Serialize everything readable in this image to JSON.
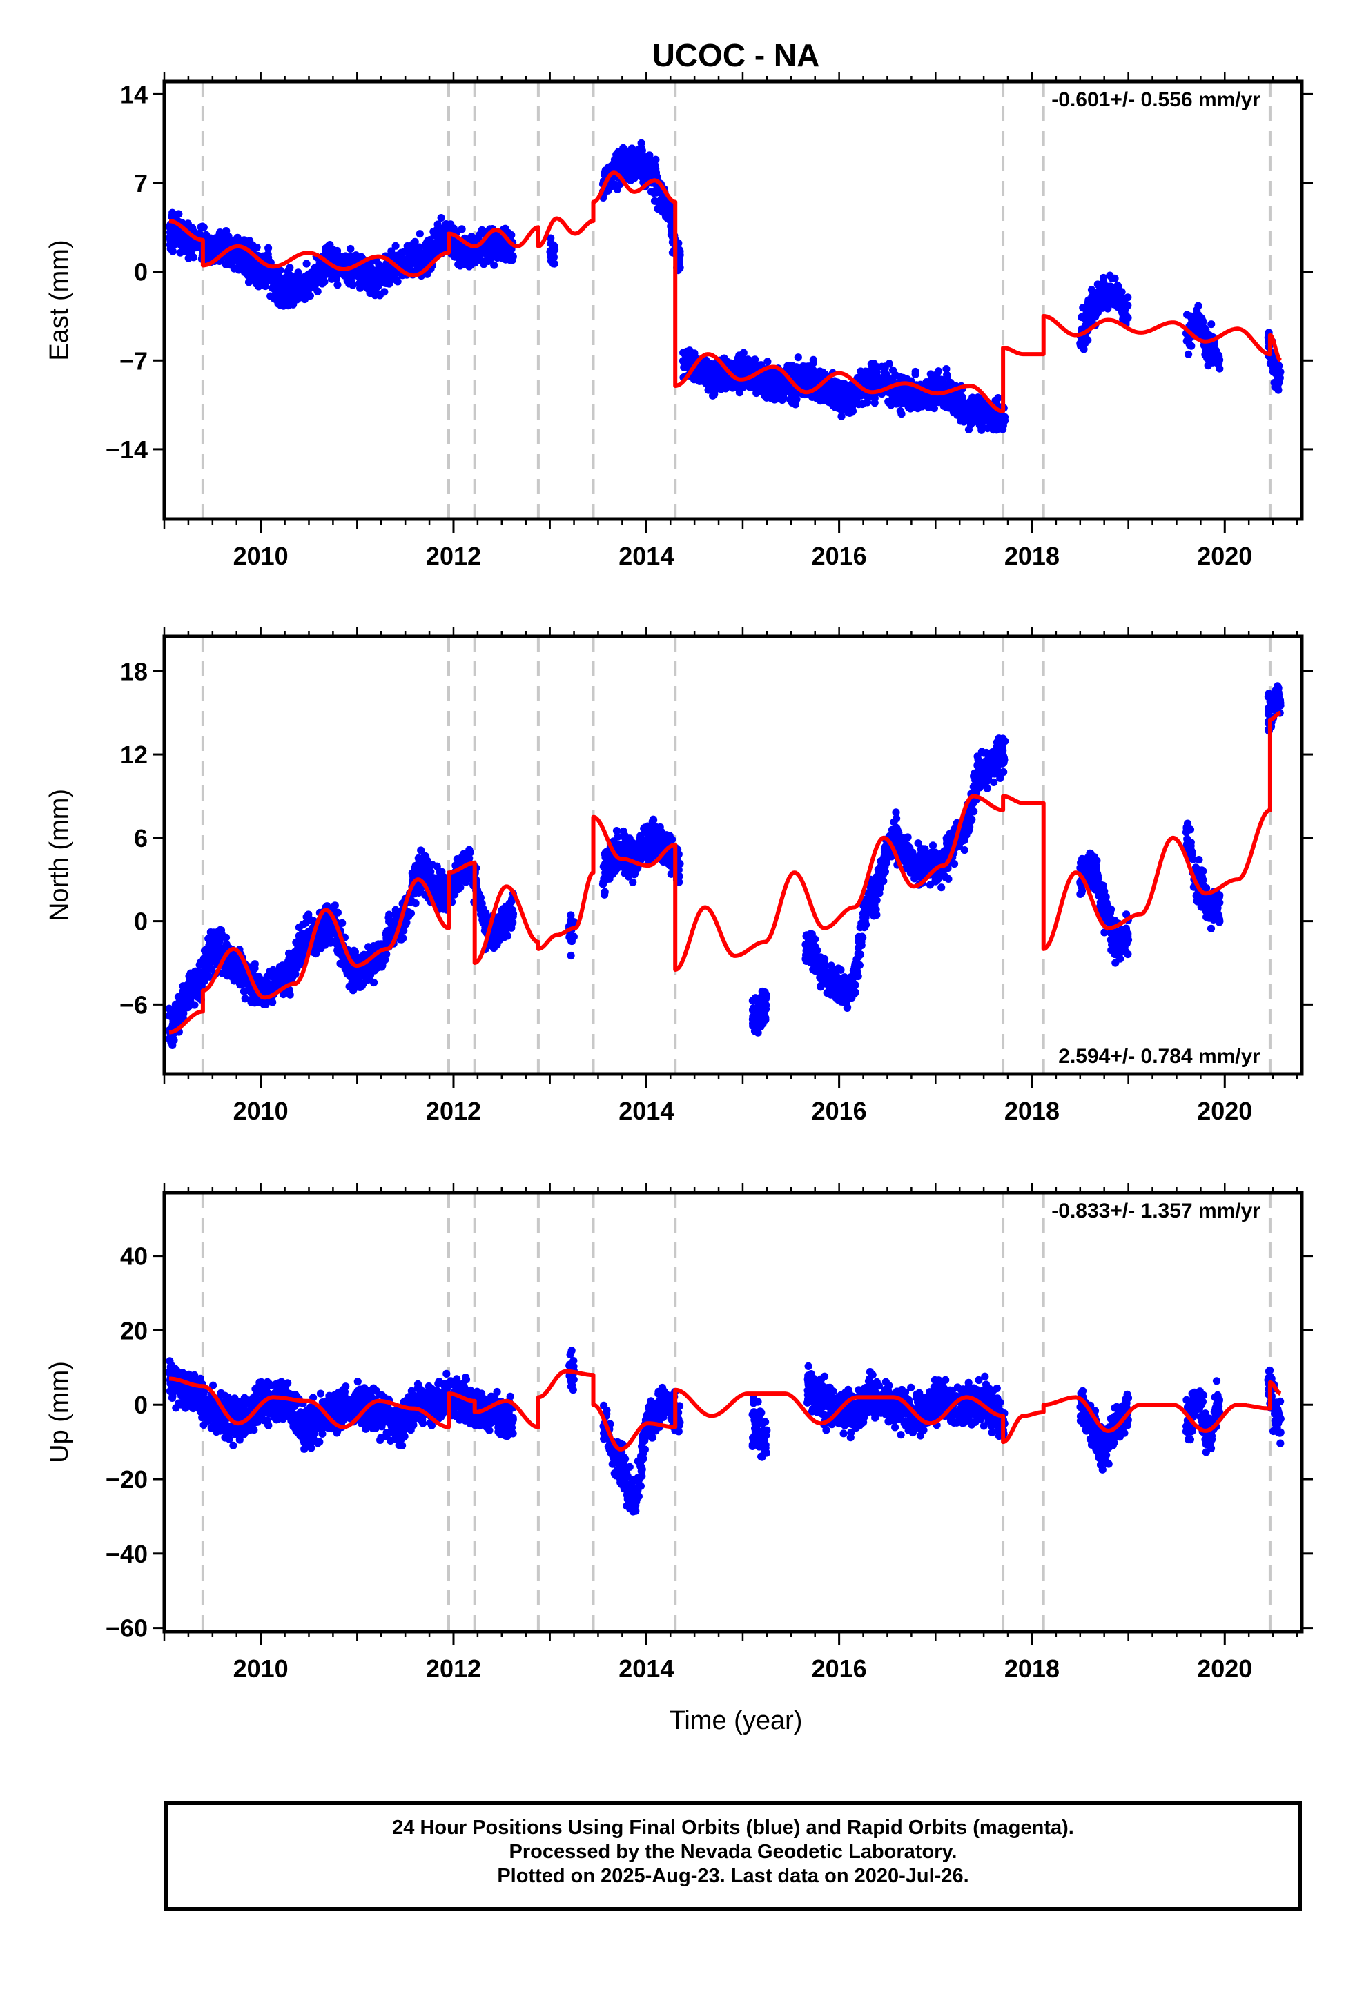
{
  "title": "UCOC - NA",
  "x_axis_label": "Time (year)",
  "footer": {
    "line1": "24 Hour Positions Using Final Orbits (blue) and Rapid Orbits (magenta).",
    "line2": "Processed by the Nevada Geodetic Laboratory.",
    "line3": "Plotted on 2025-Aug-23. Last data on 2020-Jul-26."
  },
  "colors": {
    "data_points": "#0000ff",
    "model_fit": "#ff0000",
    "step_lines": "#c8c8c8",
    "frame": "#000000"
  },
  "chart_data": [
    {
      "type": "scatter",
      "panel": "east",
      "ylabel": "East (mm)",
      "rate_label": "-0.601+/- 0.556 mm/yr",
      "rate_position": "top-right",
      "xlim": [
        2009.0,
        2020.8
      ],
      "ylim": [
        -19.5,
        15.0
      ],
      "xticks": [
        "2010",
        "2012",
        "2014",
        "2016",
        "2018",
        "2020"
      ],
      "yticks": [
        "14",
        "7",
        "0",
        "−7",
        "−14"
      ],
      "ytick_values": [
        14,
        7,
        0,
        -7,
        -14
      ],
      "step_epochs": [
        2009.4,
        2011.95,
        2012.22,
        2012.88,
        2013.45,
        2014.3,
        2017.7,
        2018.12,
        2020.47
      ],
      "series": [
        {
          "name": "",
          "style": "points",
          "segments": [
            {
              "range": [
                2009.05,
                2012.62
              ],
              "values": [
                3.2,
                2.5,
                1.8,
                1.3,
                0.4,
                -1.5,
                -1.0,
                0.6,
                0.2,
                -0.5,
                0.5,
                1.2,
                2.8,
                1.6,
                2.2,
                1.8
              ]
            },
            {
              "range": [
                2013.0,
                2013.05
              ],
              "values": [
                1.5
              ]
            },
            {
              "range": [
                2013.55,
                2014.35
              ],
              "values": [
                7.0,
                8.2,
                8.7,
                7.9,
                5.5,
                1.0
              ]
            },
            {
              "range": [
                2014.38,
                2017.72
              ],
              "values": [
                -7.0,
                -8.3,
                -8.0,
                -9.0,
                -8.5,
                -10.0,
                -8.6,
                -9.8,
                -9.3,
                -11.0,
                -11.5
              ]
            },
            {
              "range": [
                2018.5,
                2019.0
              ],
              "values": [
                -5.0,
                -3.0,
                -1.5,
                -2.0,
                -3.5
              ]
            },
            {
              "range": [
                2019.6,
                2019.95
              ],
              "values": [
                -5.0,
                -4.0,
                -6.0,
                -7.0
              ]
            },
            {
              "range": [
                2020.45,
                2020.58
              ],
              "values": [
                -6.0,
                -8.5
              ]
            }
          ],
          "spread": 1.7
        },
        {
          "name": "",
          "style": "line",
          "segments": [
            {
              "range": [
                2009.05,
                2009.4
              ],
              "values": [
                4.0,
                2.5
              ]
            },
            {
              "range": [
                2009.4,
                2011.95
              ],
              "values": [
                0.5,
                2.0,
                0.4,
                1.5,
                0.2,
                1.2,
                -0.3,
                1.5
              ]
            },
            {
              "range": [
                2011.95,
                2012.22
              ],
              "values": [
                3.0,
                2.0
              ]
            },
            {
              "range": [
                2012.22,
                2012.88
              ],
              "values": [
                2.0,
                3.3,
                2.0,
                3.5
              ]
            },
            {
              "range": [
                2012.88,
                2013.45
              ],
              "values": [
                2.0,
                4.2,
                3.0,
                4.0
              ]
            },
            {
              "range": [
                2013.45,
                2014.3
              ],
              "values": [
                5.5,
                7.8,
                6.3,
                7.2,
                5.5
              ]
            },
            {
              "range": [
                2014.3,
                2017.7
              ],
              "values": [
                -9.0,
                -6.5,
                -8.5,
                -7.5,
                -9.5,
                -8.0,
                -9.5,
                -8.8,
                -9.6,
                -9.0,
                -11.0
              ]
            },
            {
              "range": [
                2017.7,
                2018.12
              ],
              "values": [
                -6.0,
                -6.5,
                -6.5
              ]
            },
            {
              "range": [
                2018.12,
                2020.47
              ],
              "values": [
                -3.5,
                -5.0,
                -3.8,
                -4.8,
                -4.0,
                -5.5,
                -4.5,
                -6.5
              ]
            },
            {
              "range": [
                2020.47,
                2020.58
              ],
              "values": [
                -5.0,
                -7.0
              ]
            }
          ]
        }
      ]
    },
    {
      "type": "scatter",
      "panel": "north",
      "ylabel": "North (mm)",
      "rate_label": "2.594+/- 0.784 mm/yr",
      "rate_position": "bottom-right",
      "xlim": [
        2009.0,
        2020.8
      ],
      "ylim": [
        -11.0,
        20.5
      ],
      "xticks": [
        "2010",
        "2012",
        "2014",
        "2016",
        "2018",
        "2020"
      ],
      "yticks": [
        "18",
        "12",
        "6",
        "0",
        "−6"
      ],
      "ytick_values": [
        18,
        12,
        6,
        0,
        -6
      ],
      "step_epochs": [
        2009.4,
        2011.95,
        2012.22,
        2012.88,
        2013.45,
        2014.3,
        2017.7,
        2018.12,
        2020.47
      ],
      "series": [
        {
          "name": "",
          "style": "points",
          "segments": [
            {
              "range": [
                2009.05,
                2012.62
              ],
              "values": [
                -7.5,
                -5.0,
                -2.0,
                -3.5,
                -5.0,
                -4.0,
                -1.5,
                0.0,
                -3.5,
                -3.0,
                0.0,
                3.5,
                2.0,
                4.0,
                -1.0,
                0.5
              ]
            },
            {
              "range": [
                2013.2,
                2013.25
              ],
              "values": [
                -1.0
              ]
            },
            {
              "range": [
                2013.55,
                2014.35
              ],
              "values": [
                3.5,
                5.0,
                4.5,
                6.0,
                5.5,
                4.0
              ]
            },
            {
              "range": [
                2015.1,
                2015.25
              ],
              "values": [
                -7.0,
                -6.0
              ]
            },
            {
              "range": [
                2015.65,
                2017.72
              ],
              "values": [
                -2.0,
                -4.0,
                -5.0,
                2.0,
                6.0,
                4.0,
                4.0,
                6.0,
                11.0,
                12.0
              ]
            },
            {
              "range": [
                2018.5,
                2019.0
              ],
              "values": [
                3.0,
                4.0,
                1.0,
                -1.5,
                -1.0
              ]
            },
            {
              "range": [
                2019.6,
                2019.95
              ],
              "values": [
                6.0,
                3.0,
                1.0,
                0.5
              ]
            },
            {
              "range": [
                2020.45,
                2020.58
              ],
              "values": [
                15.0,
                16.0
              ]
            }
          ],
          "spread": 1.8
        },
        {
          "name": "",
          "style": "line",
          "segments": [
            {
              "range": [
                2009.05,
                2009.4
              ],
              "values": [
                -8.0,
                -6.5
              ]
            },
            {
              "range": [
                2009.4,
                2011.95
              ],
              "values": [
                -5.0,
                -2.0,
                -5.5,
                -4.5,
                0.8,
                -3.2,
                -2.0,
                3.0,
                -0.5
              ]
            },
            {
              "range": [
                2011.95,
                2012.22
              ],
              "values": [
                3.5,
                4.2
              ]
            },
            {
              "range": [
                2012.22,
                2012.88
              ],
              "values": [
                -3.0,
                2.5,
                -1.5
              ]
            },
            {
              "range": [
                2012.88,
                2013.45
              ],
              "values": [
                -2.0,
                -1.0,
                -0.5,
                3.5
              ]
            },
            {
              "range": [
                2013.45,
                2014.3
              ],
              "values": [
                7.5,
                4.5,
                4.0,
                5.5
              ]
            },
            {
              "range": [
                2014.3,
                2017.7
              ],
              "values": [
                -3.5,
                1.0,
                -2.5,
                -1.5,
                3.5,
                -0.5,
                1.0,
                6.0,
                2.5,
                4.0,
                9.0,
                8.0
              ]
            },
            {
              "range": [
                2017.7,
                2018.12
              ],
              "values": [
                9.0,
                8.5,
                8.5
              ]
            },
            {
              "range": [
                2018.12,
                2020.47
              ],
              "values": [
                -2.0,
                3.5,
                -0.5,
                0.5,
                6.0,
                2.0,
                3.0,
                8.0
              ]
            },
            {
              "range": [
                2020.47,
                2020.58
              ],
              "values": [
                14.5,
                15.0
              ]
            }
          ]
        }
      ]
    },
    {
      "type": "scatter",
      "panel": "up",
      "ylabel": "Up (mm)",
      "rate_label": "-0.833+/- 1.357 mm/yr",
      "rate_position": "top-right",
      "xlim": [
        2009.0,
        2020.8
      ],
      "ylim": [
        -61.0,
        57.0
      ],
      "xticks": [
        "2010",
        "2012",
        "2014",
        "2016",
        "2018",
        "2020"
      ],
      "yticks": [
        "40",
        "20",
        "0",
        "−20",
        "−40",
        "−60"
      ],
      "ytick_values": [
        40,
        20,
        0,
        -20,
        -40,
        -60
      ],
      "step_epochs": [
        2009.4,
        2011.95,
        2012.22,
        2012.88,
        2013.45,
        2014.3,
        2017.7,
        2018.12,
        2020.47
      ],
      "series": [
        {
          "name": "",
          "style": "points",
          "segments": [
            {
              "range": [
                2009.05,
                2012.62
              ],
              "values": [
                7.0,
                4.0,
                -2.0,
                -4.0,
                0.0,
                1.0,
                -6.0,
                -2.0,
                0.0,
                -1.0,
                -5.0,
                0.0,
                2.0,
                0.0,
                -2.0,
                -4.0
              ]
            },
            {
              "range": [
                2013.2,
                2013.25
              ],
              "values": [
                8.0
              ]
            },
            {
              "range": [
                2013.55,
                2014.35
              ],
              "values": [
                -5.0,
                -15.0,
                -25.0,
                -5.0,
                0.0,
                -3.0
              ]
            },
            {
              "range": [
                2015.1,
                2015.25
              ],
              "values": [
                -5.0,
                -10.0
              ]
            },
            {
              "range": [
                2015.65,
                2017.72
              ],
              "values": [
                5.0,
                0.0,
                -2.0,
                2.0,
                0.0,
                -3.0,
                2.0,
                0.0,
                1.0,
                -5.0
              ]
            },
            {
              "range": [
                2018.5,
                2019.0
              ],
              "values": [
                0.0,
                -5.0,
                -12.0,
                -5.0,
                -2.0
              ]
            },
            {
              "range": [
                2019.6,
                2019.95
              ],
              "values": [
                -5.0,
                0.0,
                -8.0,
                0.0
              ]
            },
            {
              "range": [
                2020.45,
                2020.58
              ],
              "values": [
                5.0,
                -5.0
              ]
            }
          ],
          "spread": 7.0
        },
        {
          "name": "",
          "style": "line",
          "segments": [
            {
              "range": [
                2009.05,
                2009.4
              ],
              "values": [
                7.0,
                5.0
              ]
            },
            {
              "range": [
                2009.4,
                2011.95
              ],
              "values": [
                5.0,
                -5.0,
                2.0,
                1.0,
                -6.0,
                1.0,
                -1.0,
                -6.0
              ]
            },
            {
              "range": [
                2011.95,
                2012.22
              ],
              "values": [
                3.0,
                1.0
              ]
            },
            {
              "range": [
                2012.22,
                2012.88
              ],
              "values": [
                -2.0,
                1.0,
                -6.0
              ]
            },
            {
              "range": [
                2012.88,
                2013.45
              ],
              "values": [
                2.0,
                9.0,
                8.0
              ]
            },
            {
              "range": [
                2013.45,
                2014.3
              ],
              "values": [
                0.0,
                -12.0,
                -5.0,
                -6.0
              ]
            },
            {
              "range": [
                2014.3,
                2017.7
              ],
              "values": [
                4.0,
                -3.0,
                3.0,
                3.0,
                -5.0,
                2.0,
                2.0,
                -5.0,
                2.0,
                -3.0
              ]
            },
            {
              "range": [
                2017.7,
                2018.12
              ],
              "values": [
                -10.0,
                -3.0,
                -2.0
              ]
            },
            {
              "range": [
                2018.12,
                2020.47
              ],
              "values": [
                0.0,
                2.0,
                -7.0,
                0.0,
                0.0,
                -7.0,
                0.0,
                -1.0
              ]
            },
            {
              "range": [
                2020.47,
                2020.58
              ],
              "values": [
                6.0,
                3.0
              ]
            }
          ]
        }
      ]
    }
  ]
}
